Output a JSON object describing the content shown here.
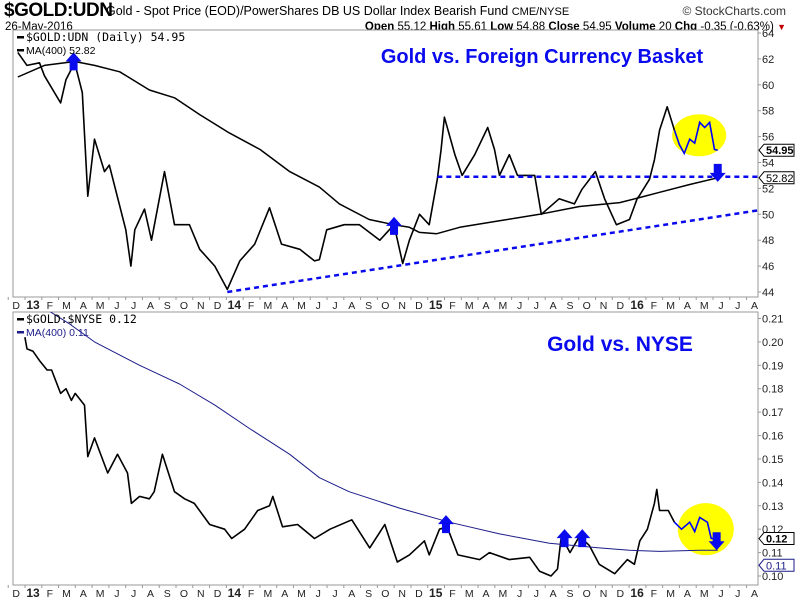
{
  "header": {
    "symbol": "$GOLD:UDN",
    "description": "Gold - Spot Price (EOD)/PowerShares DB US Dollar Index Bearish Fund",
    "exchange": "CME/NYSE",
    "brand": "© StockCharts.com",
    "date": "26-May-2016",
    "ohlc": {
      "open_label": "Open",
      "open": "55.12",
      "high_label": "High",
      "high": "55.61",
      "low_label": "Low",
      "low": "54.88",
      "close_label": "Close",
      "close": "54.95",
      "volume_label": "Volume",
      "volume": "20",
      "chg_label": "Chg",
      "chg": "-0.35 (-0.63%)",
      "chg_icon": "triangle-down-icon"
    }
  },
  "colors": {
    "price": "#000000",
    "ma_top": "#000000",
    "ma_bottom": "#1c1c8a",
    "highlight": "#0000ff",
    "annotation": "#0a0aee",
    "circle": "#ffff00"
  },
  "chart_data": [
    {
      "type": "line",
      "title": "Gold vs. Foreign Currency Basket",
      "ylim": [
        44,
        64
      ],
      "yticks": [
        "44",
        "46",
        "48",
        "50",
        "52",
        "54",
        "56",
        "58",
        "60",
        "62",
        "64"
      ],
      "grid": false,
      "legend": [
        {
          "label": "$GOLD:UDN (Daily) 54.95"
        },
        {
          "label": "MA(400) 52.82"
        }
      ],
      "last_value_tags": [
        "54.95",
        "52.82"
      ],
      "highlight_from": "2016-03-17",
      "series": [
        {
          "name": "$GOLD:UDN (Daily)",
          "points": [
            [
              "2012-12-04",
              62.5
            ],
            [
              "2012-12-21",
              61.5
            ],
            [
              "2013-01-13",
              61.7
            ],
            [
              "2013-01-22",
              60.7
            ],
            [
              "2013-02-19",
              58.6
            ],
            [
              "2013-02-28",
              60.4
            ],
            [
              "2013-03-16",
              61.7
            ],
            [
              "2013-03-30",
              59.4
            ],
            [
              "2013-04-09",
              51.4
            ],
            [
              "2013-04-21",
              55.8
            ],
            [
              "2013-05-09",
              53.3
            ],
            [
              "2013-05-18",
              53.8
            ],
            [
              "2013-06-17",
              48.8
            ],
            [
              "2013-06-26",
              46.0
            ],
            [
              "2013-07-03",
              48.8
            ],
            [
              "2013-07-21",
              50.4
            ],
            [
              "2013-08-03",
              48.0
            ],
            [
              "2013-08-27",
              53.3
            ],
            [
              "2013-09-14",
              49.2
            ],
            [
              "2013-10-11",
              49.2
            ],
            [
              "2013-10-30",
              47.3
            ],
            [
              "2013-11-26",
              46.0
            ],
            [
              "2013-12-19",
              44.2
            ],
            [
              "2014-01-11",
              46.4
            ],
            [
              "2014-02-07",
              47.7
            ],
            [
              "2014-03-04",
              50.5
            ],
            [
              "2014-03-26",
              47.7
            ],
            [
              "2014-04-28",
              47.3
            ],
            [
              "2014-05-25",
              46.4
            ],
            [
              "2014-06-03",
              46.5
            ],
            [
              "2014-06-16",
              48.8
            ],
            [
              "2014-07-18",
              49.2
            ],
            [
              "2014-08-15",
              49.2
            ],
            [
              "2014-09-21",
              48.0
            ],
            [
              "2014-10-17",
              49.2
            ],
            [
              "2014-11-02",
              46.2
            ],
            [
              "2014-11-14",
              48.0
            ],
            [
              "2014-12-02",
              50.0
            ],
            [
              "2014-12-20",
              49.2
            ],
            [
              "2015-01-04",
              52.7
            ],
            [
              "2015-01-11",
              55.0
            ],
            [
              "2015-01-17",
              57.5
            ],
            [
              "2015-02-05",
              54.6
            ],
            [
              "2015-02-17",
              53.0
            ],
            [
              "2015-03-11",
              54.6
            ],
            [
              "2015-04-04",
              56.7
            ],
            [
              "2015-04-16",
              55.0
            ],
            [
              "2015-04-25",
              53.0
            ],
            [
              "2015-05-13",
              54.6
            ],
            [
              "2015-05-28",
              53.0
            ],
            [
              "2015-06-28",
              53.0
            ],
            [
              "2015-07-10",
              50.0
            ],
            [
              "2015-08-12",
              51.2
            ],
            [
              "2015-09-09",
              50.8
            ],
            [
              "2015-09-22",
              51.9
            ],
            [
              "2015-10-17",
              53.3
            ],
            [
              "2015-11-03",
              51.2
            ],
            [
              "2015-11-24",
              49.2
            ],
            [
              "2015-12-18",
              49.6
            ],
            [
              "2016-01-01",
              51.2
            ],
            [
              "2016-01-06",
              51.5
            ],
            [
              "2016-01-24",
              52.7
            ],
            [
              "2016-02-02",
              54.2
            ],
            [
              "2016-02-11",
              56.5
            ],
            [
              "2016-02-24",
              58.3
            ],
            [
              "2016-03-08",
              56.5
            ],
            [
              "2016-03-17",
              55.4
            ],
            [
              "2016-03-26",
              54.7
            ],
            [
              "2016-04-05",
              55.8
            ],
            [
              "2016-04-14",
              55.5
            ],
            [
              "2016-04-23",
              57.1
            ],
            [
              "2016-05-02",
              56.7
            ],
            [
              "2016-05-11",
              57.1
            ],
            [
              "2016-05-20",
              55.0
            ],
            [
              "2016-05-26",
              54.95
            ]
          ]
        },
        {
          "name": "MA(400)",
          "points": [
            [
              "2012-12-04",
              60.6
            ],
            [
              "2013-01-22",
              61.5
            ],
            [
              "2013-03-16",
              61.8
            ],
            [
              "2013-04-21",
              61.5
            ],
            [
              "2013-06-06",
              61.0
            ],
            [
              "2013-07-30",
              59.6
            ],
            [
              "2013-09-14",
              59.0
            ],
            [
              "2013-10-30",
              57.7
            ],
            [
              "2013-12-22",
              56.3
            ],
            [
              "2014-02-16",
              55.0
            ],
            [
              "2014-04-10",
              53.3
            ],
            [
              "2014-06-03",
              52.1
            ],
            [
              "2014-07-09",
              50.8
            ],
            [
              "2014-09-02",
              49.6
            ],
            [
              "2014-10-17",
              49.2
            ],
            [
              "2014-11-14",
              49.0
            ],
            [
              "2014-12-02",
              48.6
            ],
            [
              "2015-01-03",
              48.5
            ],
            [
              "2015-02-13",
              49.0
            ],
            [
              "2015-04-25",
              49.5
            ],
            [
              "2015-07-07",
              50.0
            ],
            [
              "2015-09-18",
              50.6
            ],
            [
              "2015-11-30",
              50.9
            ],
            [
              "2016-01-06",
              51.3
            ],
            [
              "2016-02-11",
              51.7
            ],
            [
              "2016-04-05",
              52.3
            ],
            [
              "2016-05-26",
              52.82
            ]
          ]
        }
      ],
      "annotations": {
        "lines": [
          {
            "from": [
              "2015-01-04",
              52.9
            ],
            "to": [
              "2016-08-07",
              52.9
            ],
            "style": "dashed"
          },
          {
            "from": [
              "2013-12-19",
              44.0
            ],
            "to": [
              "2016-08-07",
              50.3
            ],
            "style": "dashed"
          }
        ],
        "arrows": [
          {
            "date": "2013-03-14",
            "value": 62.5,
            "direction": "down"
          },
          {
            "date": "2014-10-17",
            "value": 49.8,
            "direction": "down"
          },
          {
            "date": "2016-05-26",
            "value": 52.5,
            "direction": "up"
          }
        ],
        "ellipse": {
          "date": "2016-04-22",
          "value": 56.1
        }
      }
    },
    {
      "type": "line",
      "title": "Gold vs. NYSE",
      "ylim": [
        0.1,
        0.21
      ],
      "yticks": [
        "0.10",
        "0.11",
        "0.12",
        "0.13",
        "0.14",
        "0.15",
        "0.16",
        "0.17",
        "0.18",
        "0.19",
        "0.20",
        "0.21"
      ],
      "grid": false,
      "legend": [
        {
          "label": "$GOLD:$NYSE 0.12"
        },
        {
          "label": "MA(400) 0.11"
        }
      ],
      "last_value_tags": [
        "0.12",
        "0.11"
      ],
      "highlight_from": "2016-03-21",
      "series": [
        {
          "name": "$GOLD:$NYSE",
          "points": [
            [
              "2012-12-17",
              0.202
            ],
            [
              "2012-12-21",
              0.197
            ],
            [
              "2013-01-01",
              0.196
            ],
            [
              "2013-01-13",
              0.192
            ],
            [
              "2013-01-27",
              0.188
            ],
            [
              "2013-02-04",
              0.188
            ],
            [
              "2013-02-19",
              0.178
            ],
            [
              "2013-02-28",
              0.18
            ],
            [
              "2013-03-10",
              0.175
            ],
            [
              "2013-03-17",
              0.178
            ],
            [
              "2013-04-03",
              0.173
            ],
            [
              "2013-04-09",
              0.151
            ],
            [
              "2013-04-21",
              0.159
            ],
            [
              "2013-05-15",
              0.144
            ],
            [
              "2013-06-02",
              0.152
            ],
            [
              "2013-06-20",
              0.144
            ],
            [
              "2013-06-27",
              0.131
            ],
            [
              "2013-07-12",
              0.134
            ],
            [
              "2013-07-30",
              0.133
            ],
            [
              "2013-08-08",
              0.136
            ],
            [
              "2013-08-23",
              0.152
            ],
            [
              "2013-09-14",
              0.136
            ],
            [
              "2013-10-02",
              0.133
            ],
            [
              "2013-10-20",
              0.131
            ],
            [
              "2013-11-17",
              0.122
            ],
            [
              "2013-12-14",
              0.12
            ],
            [
              "2013-12-27",
              0.116
            ],
            [
              "2014-01-20",
              0.12
            ],
            [
              "2014-02-12",
              0.128
            ],
            [
              "2014-03-04",
              0.13
            ],
            [
              "2014-03-10",
              0.134
            ],
            [
              "2014-03-28",
              0.121
            ],
            [
              "2014-04-24",
              0.122
            ],
            [
              "2014-05-25",
              0.116
            ],
            [
              "2014-06-22",
              0.12
            ],
            [
              "2014-08-01",
              0.124
            ],
            [
              "2014-09-03",
              0.112
            ],
            [
              "2014-09-30",
              0.122
            ],
            [
              "2014-10-23",
              0.106
            ],
            [
              "2014-11-14",
              0.109
            ],
            [
              "2014-12-11",
              0.115
            ],
            [
              "2014-12-20",
              0.109
            ],
            [
              "2015-01-08",
              0.12
            ],
            [
              "2015-01-22",
              0.121
            ],
            [
              "2015-02-10",
              0.109
            ],
            [
              "2015-03-20",
              0.107
            ],
            [
              "2015-04-07",
              0.11
            ],
            [
              "2015-05-13",
              0.107
            ],
            [
              "2015-06-19",
              0.108
            ],
            [
              "2015-07-07",
              0.102
            ],
            [
              "2015-07-28",
              0.1
            ],
            [
              "2015-08-09",
              0.103
            ],
            [
              "2015-08-16",
              0.117
            ],
            [
              "2015-09-01",
              0.11
            ],
            [
              "2015-09-18",
              0.117
            ],
            [
              "2015-10-06",
              0.113
            ],
            [
              "2015-10-24",
              0.105
            ],
            [
              "2015-11-21",
              0.101
            ],
            [
              "2015-12-14",
              0.107
            ],
            [
              "2015-12-27",
              0.105
            ],
            [
              "2016-01-06",
              0.115
            ],
            [
              "2016-01-20",
              0.12
            ],
            [
              "2016-02-02",
              0.131
            ],
            [
              "2016-02-06",
              0.137
            ],
            [
              "2016-02-11",
              0.128
            ],
            [
              "2016-02-26",
              0.128
            ],
            [
              "2016-03-08",
              0.123
            ],
            [
              "2016-03-21",
              0.12
            ],
            [
              "2016-04-05",
              0.123
            ],
            [
              "2016-04-14",
              0.119
            ],
            [
              "2016-04-23",
              0.125
            ],
            [
              "2016-05-07",
              0.123
            ],
            [
              "2016-05-14",
              0.116
            ],
            [
              "2016-05-26",
              0.116
            ]
          ]
        },
        {
          "name": "MA(400)",
          "points": [
            [
              "2013-02-01",
              0.213
            ],
            [
              "2013-03-07",
              0.2076
            ],
            [
              "2013-04-21",
              0.2
            ],
            [
              "2013-07-12",
              0.19
            ],
            [
              "2013-09-23",
              0.182
            ],
            [
              "2013-11-26",
              0.173
            ],
            [
              "2014-01-29",
              0.163
            ],
            [
              "2014-04-10",
              0.152
            ],
            [
              "2014-06-03",
              0.142
            ],
            [
              "2014-07-27",
              0.136
            ],
            [
              "2014-10-27",
              0.129
            ],
            [
              "2015-01-26",
              0.123
            ],
            [
              "2015-04-25",
              0.118
            ],
            [
              "2015-07-25",
              0.114
            ],
            [
              "2015-10-24",
              0.112
            ],
            [
              "2015-12-18",
              0.111
            ],
            [
              "2016-02-11",
              0.1105
            ],
            [
              "2016-04-23",
              0.111
            ],
            [
              "2016-05-26",
              0.111
            ]
          ]
        }
      ],
      "annotations": {
        "arrows": [
          {
            "date": "2015-01-20",
            "value": 0.126,
            "direction": "down"
          },
          {
            "date": "2015-08-22",
            "value": 0.12,
            "direction": "down"
          },
          {
            "date": "2015-09-23",
            "value": 0.12,
            "direction": "down"
          },
          {
            "date": "2016-05-24",
            "value": 0.111,
            "direction": "up"
          }
        ],
        "ellipse": {
          "date": "2016-05-04",
          "value": 0.12
        }
      }
    }
  ],
  "x_axis": {
    "labels": [
      "D",
      "13",
      "F",
      "M",
      "A",
      "M",
      "J",
      "J",
      "A",
      "S",
      "O",
      "N",
      "D",
      "14",
      "F",
      "M",
      "A",
      "M",
      "J",
      "J",
      "A",
      "S",
      "O",
      "N",
      "D",
      "15",
      "F",
      "M",
      "A",
      "M",
      "J",
      "J",
      "A",
      "S",
      "O",
      "N",
      "D",
      "16",
      "F",
      "M",
      "A",
      "M",
      "J",
      "J",
      "A"
    ],
    "first_label_date": "2012-12-01"
  }
}
